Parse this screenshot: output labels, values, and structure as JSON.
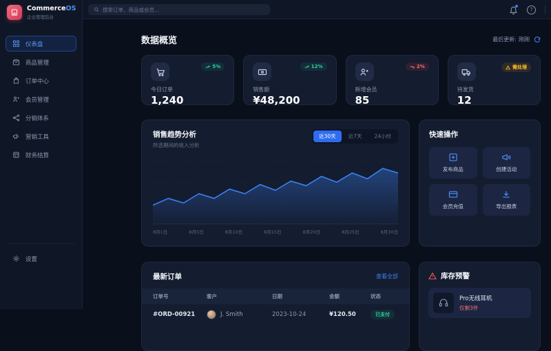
{
  "brand": {
    "name_primary": "Commerce",
    "name_accent": "OS",
    "subtitle": "企业管理后台"
  },
  "topbar": {
    "search_placeholder": "搜索订单、商品或会员...",
    "help_glyph": "?"
  },
  "sidebar": {
    "items": [
      {
        "label": "仪表盘",
        "icon": "dashboard-grid",
        "active": true
      },
      {
        "label": "商品管理",
        "icon": "product-box"
      },
      {
        "label": "订单中心",
        "icon": "order-bag"
      },
      {
        "label": "会员管理",
        "icon": "members-users"
      },
      {
        "label": "分销体系",
        "icon": "distribution-network"
      },
      {
        "label": "营销工具",
        "icon": "marketing-megaphone"
      },
      {
        "label": "财务结算",
        "icon": "finance-card"
      }
    ],
    "settings_label": "设置"
  },
  "overview": {
    "title": "数据概览",
    "last_updated_label": "最后更新:",
    "last_updated_value": "刚刚"
  },
  "stats": [
    {
      "label": "今日订单",
      "value": "1,240",
      "badge": "5%",
      "trend": "up",
      "icon": "cart"
    },
    {
      "label": "销售额",
      "value": "¥48,200",
      "badge": "12%",
      "trend": "up",
      "icon": "banknote"
    },
    {
      "label": "新增会员",
      "value": "85",
      "badge": "2%",
      "trend": "down",
      "icon": "user-plus"
    },
    {
      "label": "待发货",
      "value": "12",
      "badge": "需处理",
      "trend": "warning",
      "icon": "truck"
    }
  ],
  "chart_card": {
    "title": "销售趋势分析",
    "subtitle": "所选期间的收入分析",
    "ranges": [
      "近30天",
      "近7天",
      "24小时"
    ],
    "active_range": "近30天"
  },
  "chart_data": {
    "type": "area",
    "title": "销售趋势分析",
    "x_labels": [
      "8月1日",
      "8月5日",
      "8月10日",
      "8月15日",
      "8月20日",
      "8月25日",
      "8月30日"
    ],
    "values": [
      12,
      18,
      14,
      22,
      18,
      26,
      22,
      30,
      25,
      33,
      29,
      37,
      32,
      40,
      35,
      44,
      40
    ],
    "ylim": [
      0,
      50
    ],
    "line_color": "#3b82f6",
    "area_fill": "blue-gradient",
    "grid": true,
    "legend": false
  },
  "quick_actions": {
    "title": "快速操作",
    "actions": [
      {
        "label": "发布商品",
        "icon": "plus-square"
      },
      {
        "label": "创建活动",
        "icon": "megaphone"
      },
      {
        "label": "会员充值",
        "icon": "credit-card"
      },
      {
        "label": "导出报表",
        "icon": "download"
      }
    ]
  },
  "orders": {
    "title": "最新订单",
    "view_all_label": "查看全部",
    "columns": [
      "订单号",
      "客户",
      "日期",
      "金额",
      "状态"
    ],
    "rows": [
      {
        "order_id": "#ORD-00921",
        "customer": "J. Smith",
        "date": "2023-10-24",
        "amount": "¥120.50",
        "status": "已支付"
      }
    ]
  },
  "inventory": {
    "title": "库存预警",
    "items": [
      {
        "name": "Pro无线耳机",
        "stock_note": "仅剩3件"
      }
    ]
  },
  "colors": {
    "accent": "#3b82f6",
    "positive": "#34d399",
    "negative": "#f87171",
    "warning": "#fbbf24",
    "brand": "#e05a6d"
  }
}
